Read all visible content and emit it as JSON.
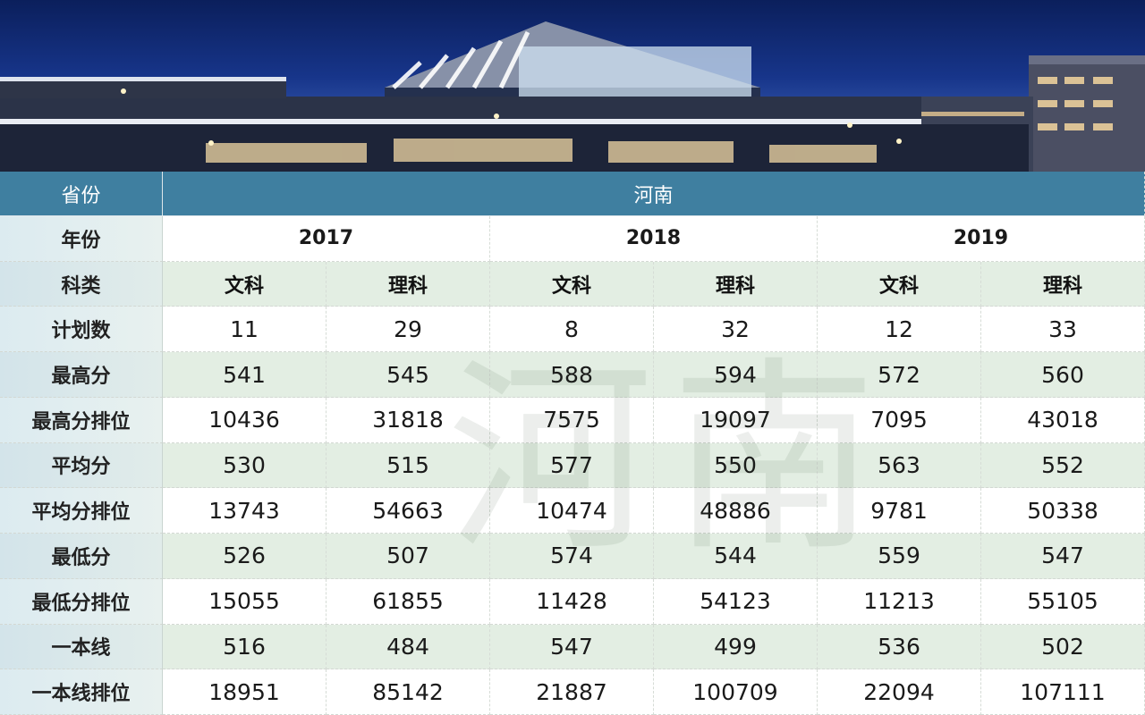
{
  "table": {
    "header": {
      "label": "省份",
      "value": "河南"
    },
    "year_row": {
      "label": "年份",
      "years": [
        "2017",
        "2018",
        "2019"
      ]
    },
    "subject_row": {
      "label": "科类",
      "values": [
        "文科",
        "理科",
        "文科",
        "理科",
        "文科",
        "理科"
      ]
    },
    "rows": [
      {
        "label": "计划数",
        "values": [
          "11",
          "29",
          "8",
          "32",
          "12",
          "33"
        ]
      },
      {
        "label": "最高分",
        "values": [
          "541",
          "545",
          "588",
          "594",
          "572",
          "560"
        ]
      },
      {
        "label": "最高分排位",
        "values": [
          "10436",
          "31818",
          "7575",
          "19097",
          "7095",
          "43018"
        ]
      },
      {
        "label": "平均分",
        "values": [
          "530",
          "515",
          "577",
          "550",
          "563",
          "552"
        ]
      },
      {
        "label": "平均分排位",
        "values": [
          "13743",
          "54663",
          "10474",
          "48886",
          "9781",
          "50338"
        ]
      },
      {
        "label": "最低分",
        "values": [
          "526",
          "507",
          "574",
          "544",
          "559",
          "547"
        ]
      },
      {
        "label": "最低分排位",
        "values": [
          "15055",
          "61855",
          "11428",
          "54123",
          "11213",
          "55105"
        ]
      },
      {
        "label": "一本线",
        "values": [
          "516",
          "484",
          "547",
          "499",
          "536",
          "502"
        ]
      },
      {
        "label": "一本线排位",
        "values": [
          "18951",
          "85142",
          "21887",
          "100709",
          "22094",
          "107111"
        ]
      }
    ]
  },
  "watermark": {
    "chars": [
      "河",
      "南"
    ]
  },
  "colors": {
    "header_bg": "#3f7fa0",
    "alt_row_bg": "#e3eee3",
    "label_bg": "#dcebf0"
  }
}
